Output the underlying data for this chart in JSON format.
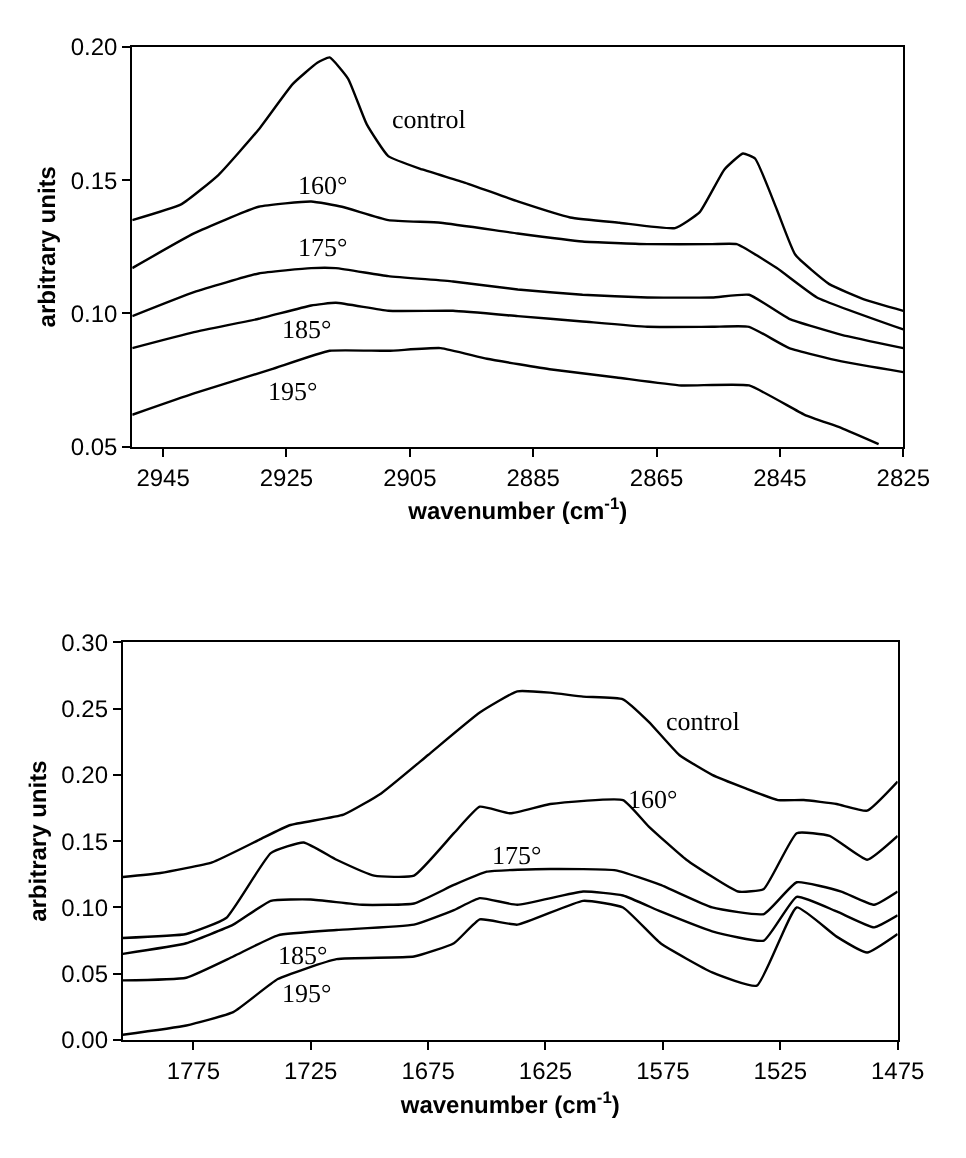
{
  "chart_data": [
    {
      "type": "line",
      "xlabel": "wavenumber (cm$^{-1}$)",
      "ylabel": "arbitrary units",
      "xlim": [
        2950,
        2825
      ],
      "xticks": [
        2945,
        2925,
        2905,
        2885,
        2865,
        2845,
        2825
      ],
      "ylim": [
        0.05,
        0.2
      ],
      "yticks": [
        {
          "value": 0.05,
          "label": "0.05"
        },
        {
          "value": 0.1,
          "label": "0.10"
        },
        {
          "value": 0.15,
          "label": "0.15"
        },
        {
          "value": 0.2,
          "label": "0.20"
        }
      ],
      "legend": false,
      "marker": "none",
      "line_style": "solid",
      "series": [
        {
          "name": "control",
          "color": "#000000",
          "x": [
            2950,
            2942,
            2936,
            2929.5,
            2924,
            2920,
            2918,
            2915,
            2912,
            2908.5,
            2903,
            2896,
            2887.5,
            2879,
            2871,
            2862,
            2858,
            2854,
            2851,
            2849,
            2845.5,
            2842.5,
            2837,
            2831,
            2825
          ],
          "values": [
            0.135,
            0.141,
            0.152,
            0.169,
            0.186,
            0.194,
            0.196,
            0.188,
            0.171,
            0.159,
            0.154,
            0.149,
            0.142,
            0.136,
            0.134,
            0.132,
            0.138,
            0.154,
            0.16,
            0.158,
            0.139,
            0.122,
            0.111,
            0.105,
            0.101
          ]
        },
        {
          "name": "160°",
          "color": "#000000",
          "x": [
            2950,
            2940,
            2929.5,
            2921,
            2916,
            2908.5,
            2900,
            2887.5,
            2877,
            2866.5,
            2856,
            2852,
            2845.5,
            2839,
            2825
          ],
          "values": [
            0.117,
            0.13,
            0.14,
            0.142,
            0.14,
            0.135,
            0.134,
            0.13,
            0.127,
            0.126,
            0.126,
            0.126,
            0.117,
            0.106,
            0.094
          ]
        },
        {
          "name": "175°",
          "color": "#000000",
          "x": [
            2950,
            2940,
            2929.5,
            2921,
            2917,
            2908.5,
            2898,
            2887.5,
            2877,
            2866.5,
            2856,
            2850,
            2843.5,
            2835,
            2825
          ],
          "values": [
            0.099,
            0.108,
            0.115,
            0.117,
            0.117,
            0.114,
            0.112,
            0.109,
            0.107,
            0.106,
            0.106,
            0.107,
            0.098,
            0.092,
            0.087
          ]
        },
        {
          "name": "185°",
          "color": "#000000",
          "x": [
            2950,
            2940,
            2929.5,
            2921,
            2917,
            2908.5,
            2898,
            2887.5,
            2877,
            2866.5,
            2856,
            2850,
            2843.5,
            2835,
            2825
          ],
          "values": [
            0.087,
            0.093,
            0.098,
            0.103,
            0.104,
            0.101,
            0.101,
            0.099,
            0.097,
            0.095,
            0.095,
            0.095,
            0.087,
            0.082,
            0.078
          ]
        },
        {
          "name": "195°",
          "color": "#000000",
          "x": [
            2950,
            2940,
            2927.5,
            2918,
            2908.5,
            2900,
            2892.5,
            2882,
            2871.5,
            2861,
            2850,
            2841,
            2835,
            2829
          ],
          "values": [
            0.062,
            0.07,
            0.079,
            0.086,
            0.086,
            0.087,
            0.083,
            0.079,
            0.076,
            0.073,
            0.073,
            0.062,
            0.057,
            0.051
          ]
        }
      ]
    },
    {
      "type": "line",
      "xlabel": "wavenumber (cm$^{-1}$)",
      "ylabel": "arbitrary units",
      "xlim": [
        1805,
        1475
      ],
      "xticks": [
        1775,
        1725,
        1675,
        1625,
        1575,
        1525,
        1475
      ],
      "ylim": [
        0,
        0.3
      ],
      "yticks": [
        {
          "value": 0,
          "label": "0.00"
        },
        {
          "value": 0.05,
          "label": "0.05"
        },
        {
          "value": 0.1,
          "label": "0.10"
        },
        {
          "value": 0.15,
          "label": "0.15"
        },
        {
          "value": 0.2,
          "label": "0.20"
        },
        {
          "value": 0.25,
          "label": "0.25"
        },
        {
          "value": 0.3,
          "label": "0.30"
        }
      ],
      "legend": false,
      "marker": "none",
      "line_style": "solid",
      "series": [
        {
          "name": "control",
          "color": "#000000",
          "x": [
            1805,
            1789,
            1767,
            1747,
            1734,
            1711,
            1695,
            1675,
            1653,
            1637,
            1623,
            1609,
            1592,
            1581,
            1568,
            1554,
            1540,
            1526,
            1515,
            1501,
            1488,
            1475
          ],
          "values": [
            0.123,
            0.126,
            0.134,
            0.151,
            0.162,
            0.17,
            0.186,
            0.215,
            0.247,
            0.263,
            0.262,
            0.259,
            0.257,
            0.24,
            0.215,
            0.2,
            0.19,
            0.181,
            0.181,
            0.178,
            0.173,
            0.195
          ]
        },
        {
          "name": "160°",
          "color": "#000000",
          "x": [
            1805,
            1778,
            1761,
            1742,
            1728,
            1714,
            1698,
            1681,
            1664,
            1653,
            1640,
            1623,
            1592,
            1581,
            1565,
            1543,
            1532,
            1518,
            1504,
            1488,
            1475
          ],
          "values": [
            0.077,
            0.08,
            0.092,
            0.141,
            0.149,
            0.136,
            0.124,
            0.124,
            0.156,
            0.176,
            0.171,
            0.178,
            0.181,
            0.161,
            0.136,
            0.112,
            0.114,
            0.156,
            0.154,
            0.136,
            0.154
          ]
        },
        {
          "name": "175°",
          "color": "#000000",
          "x": [
            1805,
            1778,
            1758,
            1742,
            1725,
            1703,
            1681,
            1664,
            1650,
            1623,
            1595,
            1576,
            1554,
            1532,
            1518,
            1499,
            1485,
            1475
          ],
          "values": [
            0.065,
            0.073,
            0.087,
            0.105,
            0.106,
            0.102,
            0.103,
            0.117,
            0.127,
            0.129,
            0.128,
            0.117,
            0.1,
            0.095,
            0.119,
            0.112,
            0.102,
            0.112
          ]
        },
        {
          "name": "185°",
          "color": "#000000",
          "x": [
            1805,
            1778,
            1758,
            1739,
            1714,
            1681,
            1664,
            1653,
            1637,
            1609,
            1592,
            1576,
            1554,
            1532,
            1518,
            1501,
            1485,
            1475
          ],
          "values": [
            0.045,
            0.047,
            0.063,
            0.079,
            0.083,
            0.087,
            0.098,
            0.107,
            0.102,
            0.112,
            0.109,
            0.097,
            0.082,
            0.075,
            0.108,
            0.097,
            0.085,
            0.094
          ]
        },
        {
          "name": "195°",
          "color": "#000000",
          "x": [
            1805,
            1778,
            1758,
            1739,
            1714,
            1681,
            1664,
            1653,
            1637,
            1609,
            1592,
            1576,
            1554,
            1535,
            1518,
            1501,
            1488,
            1475
          ],
          "values": [
            0.004,
            0.011,
            0.021,
            0.046,
            0.061,
            0.063,
            0.073,
            0.091,
            0.087,
            0.105,
            0.1,
            0.073,
            0.051,
            0.041,
            0.1,
            0.078,
            0.066,
            0.08
          ]
        }
      ]
    }
  ]
}
